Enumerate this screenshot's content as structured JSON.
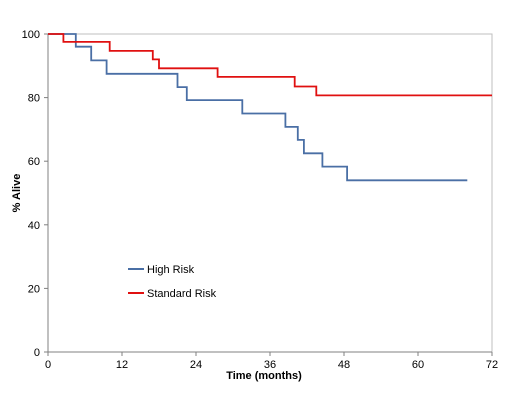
{
  "chart_data": {
    "type": "line",
    "step": true,
    "xlabel": "Time (months)",
    "ylabel": "% Alive",
    "xlim": [
      0,
      72
    ],
    "ylim": [
      0,
      100
    ],
    "xticks": [
      0,
      12,
      24,
      36,
      48,
      60,
      72
    ],
    "yticks": [
      0,
      20,
      40,
      60,
      80,
      100
    ],
    "grid": false,
    "legend_position": "lower-left",
    "series": [
      {
        "name": "High Risk",
        "color": "#4a6fa5",
        "points": [
          [
            0,
            100
          ],
          [
            4.5,
            100
          ],
          [
            4.5,
            96
          ],
          [
            7,
            96
          ],
          [
            7,
            91.7
          ],
          [
            9.5,
            91.7
          ],
          [
            9.5,
            87.5
          ],
          [
            21,
            87.5
          ],
          [
            21,
            83.3
          ],
          [
            22.5,
            83.3
          ],
          [
            22.5,
            79.2
          ],
          [
            31.5,
            79.2
          ],
          [
            31.5,
            75
          ],
          [
            38.5,
            75
          ],
          [
            38.5,
            70.8
          ],
          [
            40.5,
            70.8
          ],
          [
            40.5,
            66.7
          ],
          [
            41.5,
            66.7
          ],
          [
            41.5,
            62.5
          ],
          [
            44.5,
            62.5
          ],
          [
            44.5,
            58.3
          ],
          [
            48.5,
            58.3
          ],
          [
            48.5,
            54
          ],
          [
            68,
            54
          ]
        ]
      },
      {
        "name": "Standard Risk",
        "color": "#e01010",
        "points": [
          [
            0,
            100
          ],
          [
            2.5,
            100
          ],
          [
            2.5,
            97.5
          ],
          [
            10,
            97.5
          ],
          [
            10,
            94.7
          ],
          [
            17,
            94.7
          ],
          [
            17,
            92
          ],
          [
            18,
            92
          ],
          [
            18,
            89.2
          ],
          [
            27.5,
            89.2
          ],
          [
            27.5,
            86.5
          ],
          [
            40,
            86.5
          ],
          [
            40,
            83.5
          ],
          [
            43.5,
            83.5
          ],
          [
            43.5,
            80.7
          ],
          [
            72,
            80.7
          ]
        ]
      }
    ]
  }
}
